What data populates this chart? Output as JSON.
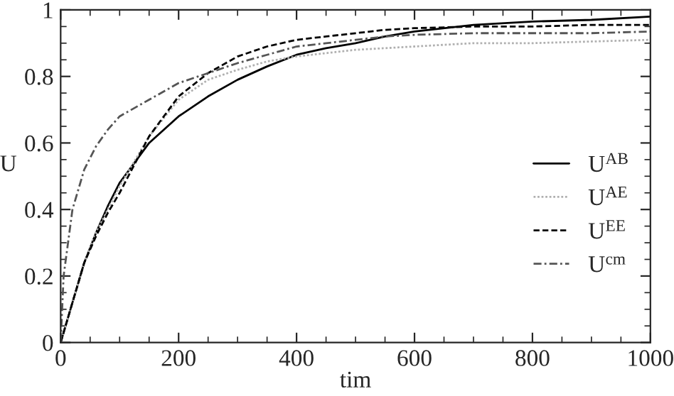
{
  "chart_data": {
    "type": "line",
    "xlabel": "tim",
    "ylabel": "U",
    "xlim": [
      0,
      1000
    ],
    "ylim": [
      0,
      1
    ],
    "xticks": [
      0,
      200,
      400,
      600,
      800,
      {
        "value": 1000,
        "label": "1000"
      }
    ],
    "yticks": [
      0,
      0.2,
      0.4,
      0.6,
      0.8,
      1
    ],
    "legend": "right",
    "grid": false,
    "x": [
      0,
      5,
      20,
      40,
      60,
      80,
      100,
      150,
      200,
      250,
      300,
      350,
      400,
      450,
      500,
      550,
      600,
      700,
      800,
      900,
      1000
    ],
    "series": [
      {
        "name": "U$^{AB}$",
        "color": "#000000",
        "line_style": "solid",
        "values": [
          0,
          0.03,
          0.12,
          0.24,
          0.33,
          0.41,
          0.48,
          0.6,
          0.68,
          0.74,
          0.79,
          0.83,
          0.865,
          0.885,
          0.9,
          0.92,
          0.935,
          0.955,
          0.965,
          0.97,
          0.98
        ]
      },
      {
        "name": "U$^{AE}$",
        "color": "#b0b0b0",
        "line_style": "dotted",
        "values": [
          0,
          0.03,
          0.12,
          0.24,
          0.33,
          0.4,
          0.47,
          0.62,
          0.73,
          0.79,
          0.82,
          0.845,
          0.86,
          0.87,
          0.88,
          0.885,
          0.89,
          0.9,
          0.9,
          0.905,
          0.91
        ]
      },
      {
        "name": "U$^{EE}$",
        "color": "#000000",
        "line_style": "dashed",
        "values": [
          0,
          0.03,
          0.12,
          0.24,
          0.32,
          0.39,
          0.45,
          0.62,
          0.74,
          0.81,
          0.86,
          0.89,
          0.91,
          0.92,
          0.93,
          0.94,
          0.945,
          0.95,
          0.95,
          0.955,
          0.955
        ]
      },
      {
        "name": "U$^{cm}$",
        "color": "#555555",
        "line_style": "dashdot",
        "values": [
          0,
          0.2,
          0.4,
          0.52,
          0.59,
          0.64,
          0.68,
          0.73,
          0.78,
          0.81,
          0.84,
          0.865,
          0.89,
          0.9,
          0.91,
          0.92,
          0.925,
          0.93,
          0.93,
          0.93,
          0.935
        ]
      }
    ]
  }
}
